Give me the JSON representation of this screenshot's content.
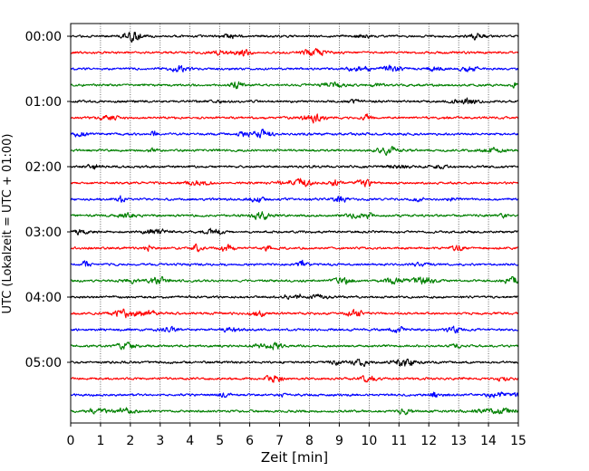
{
  "chart_data": {
    "type": "line",
    "title": "",
    "xlabel": "Zeit  [min]",
    "ylabel": "UTC (Lokalzeit = UTC + 01:00)",
    "xlim": [
      0,
      15
    ],
    "x_ticks": [
      0,
      1,
      2,
      3,
      4,
      5,
      6,
      7,
      8,
      9,
      10,
      11,
      12,
      13,
      14,
      15
    ],
    "grid": "vertical-dotted",
    "legend": "none",
    "trace_interval_minutes": 15,
    "trace_count": 24,
    "y_tick_labels": [
      "00:00",
      "01:00",
      "02:00",
      "03:00",
      "04:00",
      "05:00"
    ],
    "color_cycle": [
      "#000000",
      "#ff0000",
      "#0000ff",
      "#008000"
    ]
  }
}
